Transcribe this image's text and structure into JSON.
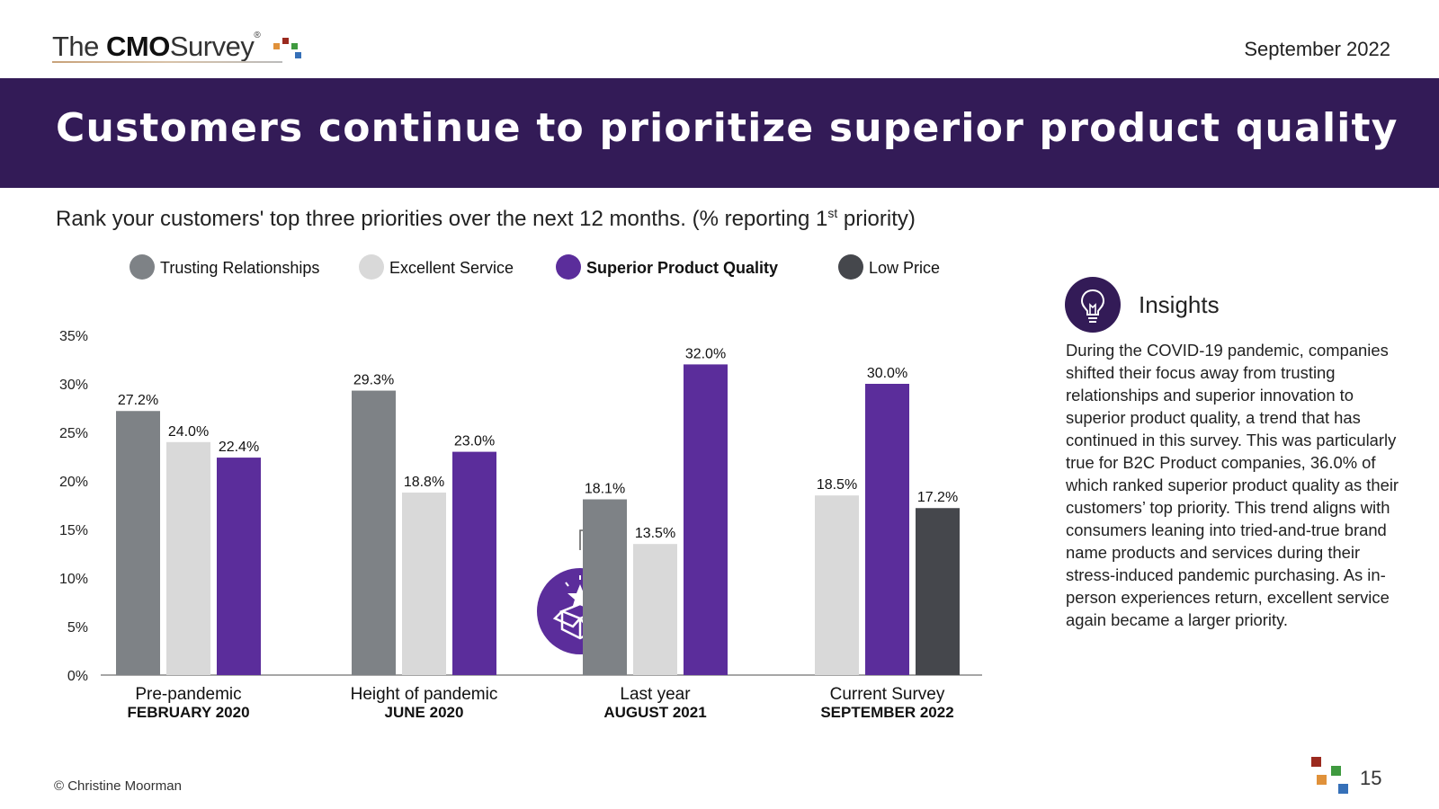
{
  "header": {
    "logo": {
      "the": "The",
      "cmo": "CMO",
      "survey": "Survey",
      "reg": "®"
    },
    "date": "September 2022",
    "title": "Customers continue to prioritize superior product quality"
  },
  "question": {
    "text_before": "Rank your customers' top three priorities over the next 12 months. (% reporting 1",
    "sup": "st",
    "text_after": " priority)"
  },
  "colors": {
    "banner": "#331b57",
    "trusting": "#7e8286",
    "excellent": "#d9d9d9",
    "quality": "#5b2d9b",
    "price": "#45474c",
    "logo_red": "#9b2a1f",
    "logo_orange": "#e0913a",
    "logo_green": "#3f9a3f",
    "logo_blue": "#3670b8"
  },
  "chart_data": {
    "type": "bar",
    "title": "",
    "ylabel": "",
    "ylim": [
      0,
      35
    ],
    "yticks": [
      "0%",
      "5%",
      "10%",
      "15%",
      "20%",
      "25%",
      "30%",
      "35%"
    ],
    "legend": [
      {
        "name": "Trusting Relationships",
        "color": "#7e8286",
        "bold": false
      },
      {
        "name": "Excellent Service",
        "color": "#d9d9d9",
        "bold": false
      },
      {
        "name": "Superior Product Quality",
        "color": "#5b2d9b",
        "bold": true
      },
      {
        "name": "Low Price",
        "color": "#45474c",
        "bold": false
      }
    ],
    "groups": [
      {
        "label": "Pre-pandemic",
        "sublabel": "FEBRUARY 2020",
        "bars": [
          {
            "series": "Trusting Relationships",
            "value": 27.2,
            "label": "27.2%"
          },
          {
            "series": "Excellent Service",
            "value": 24.0,
            "label": "24.0%"
          },
          {
            "series": "Superior Product Quality",
            "value": 22.4,
            "label": "22.4%"
          }
        ]
      },
      {
        "label": "Height of pandemic",
        "sublabel": "JUNE 2020",
        "bars": [
          {
            "series": "Trusting Relationships",
            "value": 29.3,
            "label": "29.3%"
          },
          {
            "series": "Excellent Service",
            "value": 18.8,
            "label": "18.8%"
          },
          {
            "series": "Superior Product Quality",
            "value": 23.0,
            "label": "23.0%"
          }
        ]
      },
      {
        "label": "Last year",
        "sublabel": "AUGUST 2021",
        "bars": [
          {
            "series": "Trusting Relationships",
            "value": 18.1,
            "label": "18.1%"
          },
          {
            "series": "Excellent Service",
            "value": 13.5,
            "label": "13.5%"
          },
          {
            "series": "Superior Product Quality",
            "value": 32.0,
            "label": "32.0%"
          }
        ]
      },
      {
        "label": "Current Survey",
        "sublabel": "SEPTEMBER 2022",
        "bars": [
          {
            "series": "Excellent Service",
            "value": 18.5,
            "label": "18.5%"
          },
          {
            "series": "Superior Product Quality",
            "value": 30.0,
            "label": "30.0%"
          },
          {
            "series": "Low Price",
            "value": 17.2,
            "label": "17.2%"
          }
        ]
      }
    ]
  },
  "insights": {
    "icon": "lightbulb-icon",
    "title": "Insights",
    "text": "During the COVID-19 pandemic, companies shifted their focus away from trusting relationships and superior innovation to superior product quality, a trend that has continued in this survey. This was particularly true for B2C Product companies, 36.0% of which ranked superior product quality as their customers’ top priority. This trend aligns with consumers leaning into tried-and-true brand name products and services during their stress-induced pandemic purchasing. As in-person experiences return, excellent service again became a larger priority."
  },
  "footer": {
    "copyright": "© Christine Moorman",
    "page": "15"
  }
}
